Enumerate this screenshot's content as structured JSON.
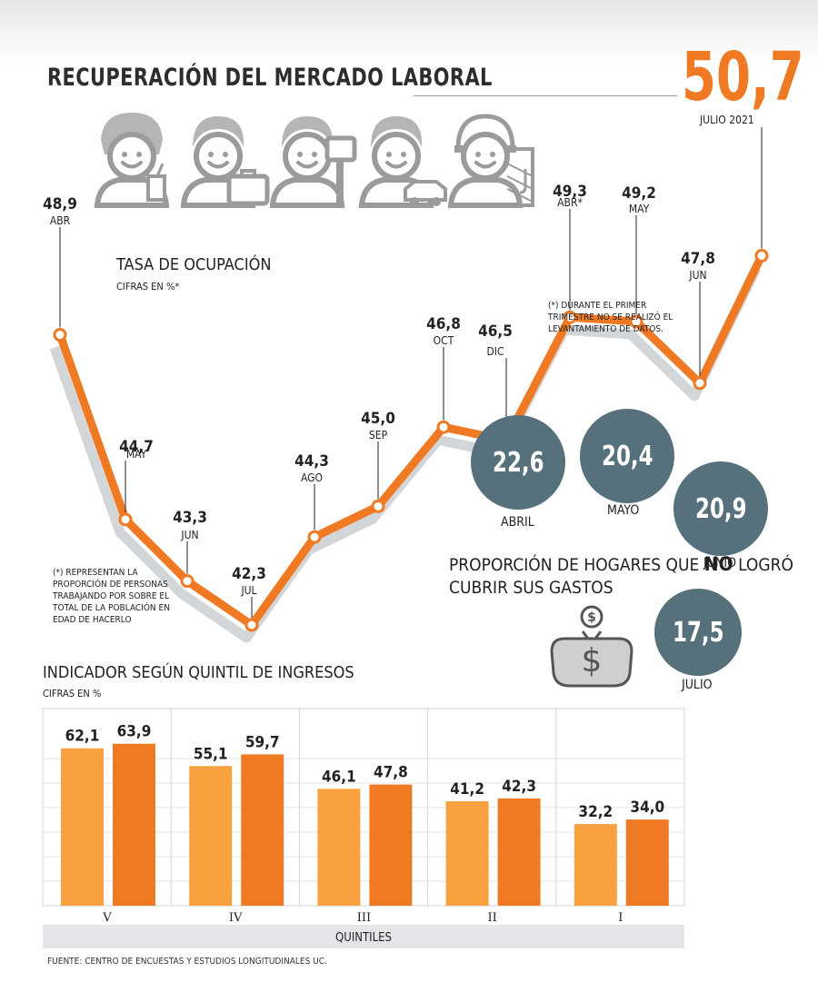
{
  "title": "RECUPERACIÓN DEL MERCADO LABORAL",
  "highlight": {
    "value": "50,7",
    "label": "JULIO 2021"
  },
  "occupation": {
    "title": "TASA DE OCUPACIÓN",
    "subtitle": "CIFRAS EN %*",
    "footnote_left": "(*) REPRESENTAN LA PROPORCIÓN DE PERSONAS TRABAJANDO POR SOBRE EL TOTAL DE LA POBLACIÓN EN EDAD DE HACERLO",
    "footnote_right": "(*) DURANTE EL PRIMER TRIMESTRE NO SE REALIZÓ EL LEVANTAMIENTO DE DATOS."
  },
  "households": {
    "title_pre": "PROPORCIÓN DE HOGARES QUE ",
    "title_bold": "NO",
    "title_post": " LOGRÓ CUBRIR SUS GASTOS",
    "items": [
      {
        "value": "22,6",
        "label": "ABRIL"
      },
      {
        "value": "20,4",
        "label": "MAYO"
      },
      {
        "value": "20,9",
        "label": "JUNIO"
      },
      {
        "value": "17,5",
        "label": "JULIO"
      }
    ]
  },
  "quintiles": {
    "title": "INDICADOR SEGÚN QUINTIL DE INGRESOS",
    "subtitle": "CIFRAS EN %",
    "axis_label": "QUINTILES"
  },
  "source": "FUENTE: CENTRO DE ENCUESTAS Y ESTUDIOS LONGITUDINALES UC.",
  "colors": {
    "line": "#f07a24",
    "line_shadow": "#d3d6d9",
    "bar_light": "#f9a03f",
    "bar_dark": "#f07a24",
    "circle": "#56707c",
    "icon_gray": "#9b9b9b"
  },
  "icons": [
    "waitress-icon",
    "office-worker-icon",
    "painter-icon",
    "taxi-driver-icon",
    "construction-worker-icon",
    "money-bag-icon"
  ],
  "chart_data": [
    {
      "type": "line",
      "title": "TASA DE OCUPACIÓN",
      "subtitle": "CIFRAS EN %*",
      "x": [
        "ABR",
        "MAY",
        "JUN",
        "JUL",
        "AGO",
        "SEP",
        "OCT",
        "DIC",
        "ABR*",
        "MAY",
        "JUN",
        "JULIO 2021"
      ],
      "values": [
        48.9,
        44.7,
        43.3,
        42.3,
        44.3,
        45.0,
        46.8,
        46.5,
        49.3,
        49.2,
        47.8,
        50.7
      ],
      "labels": [
        "48,9",
        "44,7",
        "43,3",
        "42,3",
        "44,3",
        "45,0",
        "46,8",
        "46,5",
        "49,3",
        "49,2",
        "47,8",
        "50,7"
      ],
      "grid": false
    },
    {
      "type": "bar",
      "title": "INDICADOR SEGÚN QUINTIL DE INGRESOS",
      "subtitle": "CIFRAS EN %",
      "xlabel": "QUINTILES",
      "categories": [
        "V",
        "IV",
        "III",
        "II",
        "I"
      ],
      "series": [
        {
          "values": [
            62.1,
            55.1,
            46.1,
            41.2,
            32.2
          ],
          "labels": [
            "62,1",
            "55,1",
            "46,1",
            "41,2",
            "32,2"
          ],
          "color": "#f9a03f"
        },
        {
          "values": [
            63.9,
            59.7,
            47.8,
            42.3,
            34.0
          ],
          "labels": [
            "63,9",
            "59,7",
            "47,8",
            "42,3",
            "34,0"
          ],
          "color": "#f07a24"
        }
      ],
      "ylim": [
        0,
        70
      ],
      "grid": true
    }
  ]
}
